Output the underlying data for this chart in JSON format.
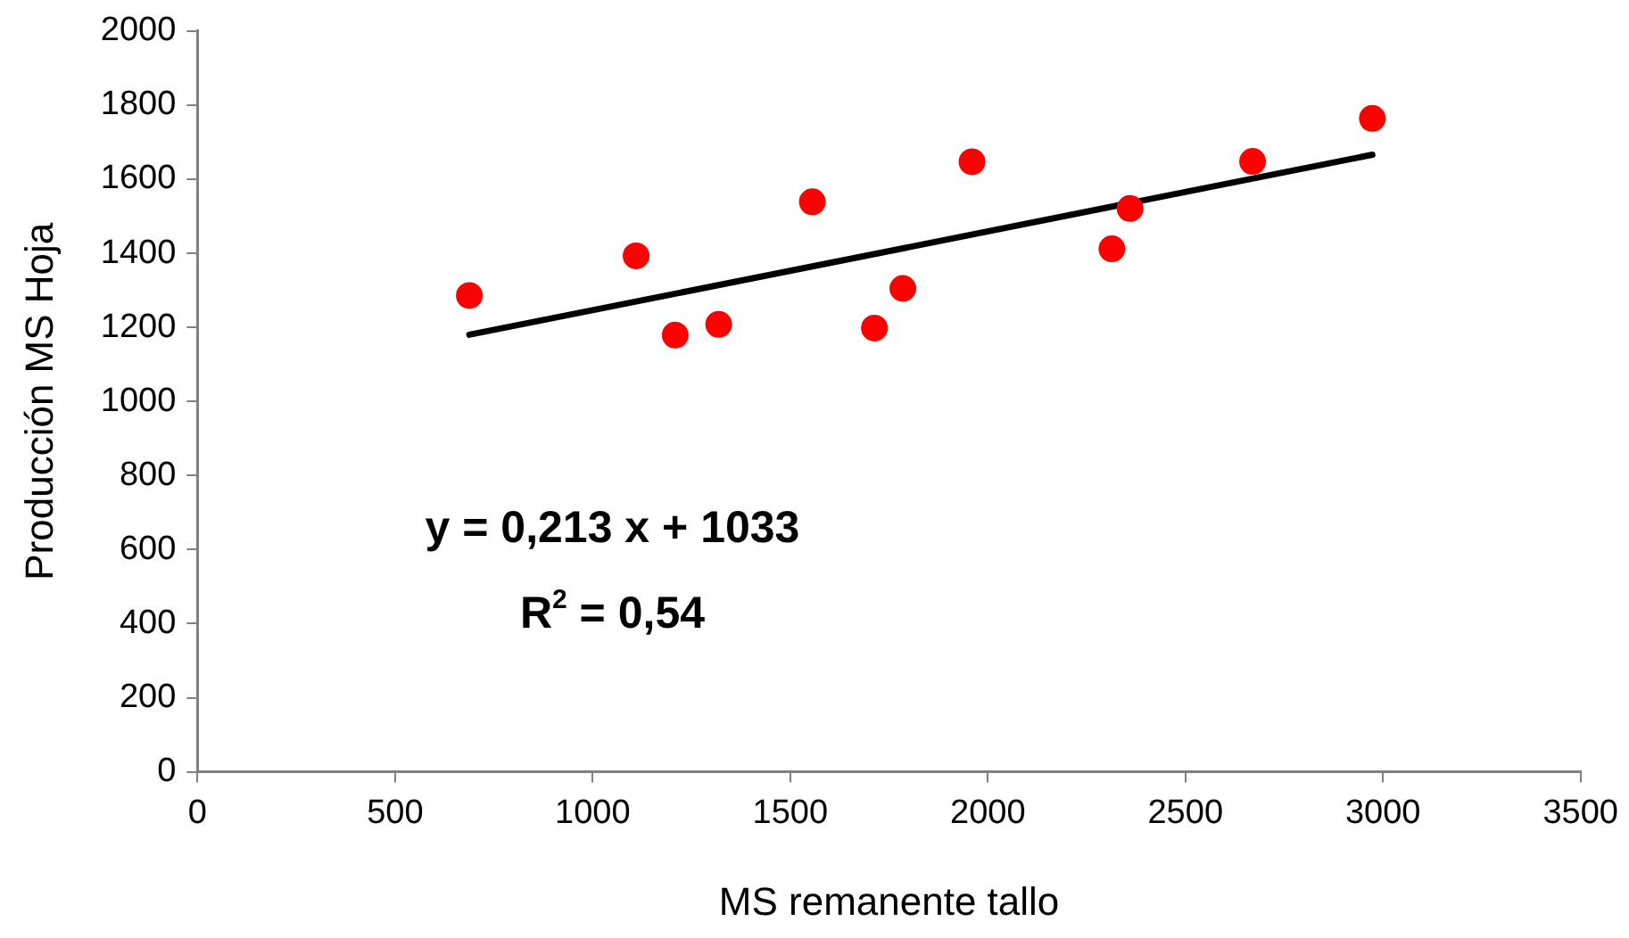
{
  "chart_data": {
    "type": "scatter",
    "xlabel": "MS remanente tallo",
    "ylabel": "Producción MS Hoja",
    "xlim": [
      0,
      3500
    ],
    "xticks": [
      0,
      500,
      1000,
      1500,
      2000,
      2500,
      3000,
      3500
    ],
    "ylim": [
      0,
      2000
    ],
    "yticks": [
      0,
      200,
      400,
      600,
      800,
      1000,
      1200,
      1400,
      1600,
      1800,
      2000
    ],
    "grid": false,
    "legend": false,
    "marker": "circle",
    "series": [
      {
        "type": "scatter",
        "color": "#ff0000",
        "x": [
          688,
          1110,
          1209,
          1319,
          1556,
          1713,
          1785,
          1960,
          2314,
          2360,
          2670,
          2973
        ],
        "values": [
          1286,
          1393,
          1179,
          1208,
          1539,
          1198,
          1305,
          1647,
          1412,
          1521,
          1648,
          1764
        ]
      },
      {
        "type": "line",
        "color": "#000000",
        "marker": "none",
        "line_style": "solid",
        "x": [
          688,
          2973
        ],
        "values": [
          1180,
          1666
        ]
      }
    ],
    "annotations": [
      "y = 0,213 x + 1033",
      "R$^{2}$ = 0,54"
    ]
  }
}
